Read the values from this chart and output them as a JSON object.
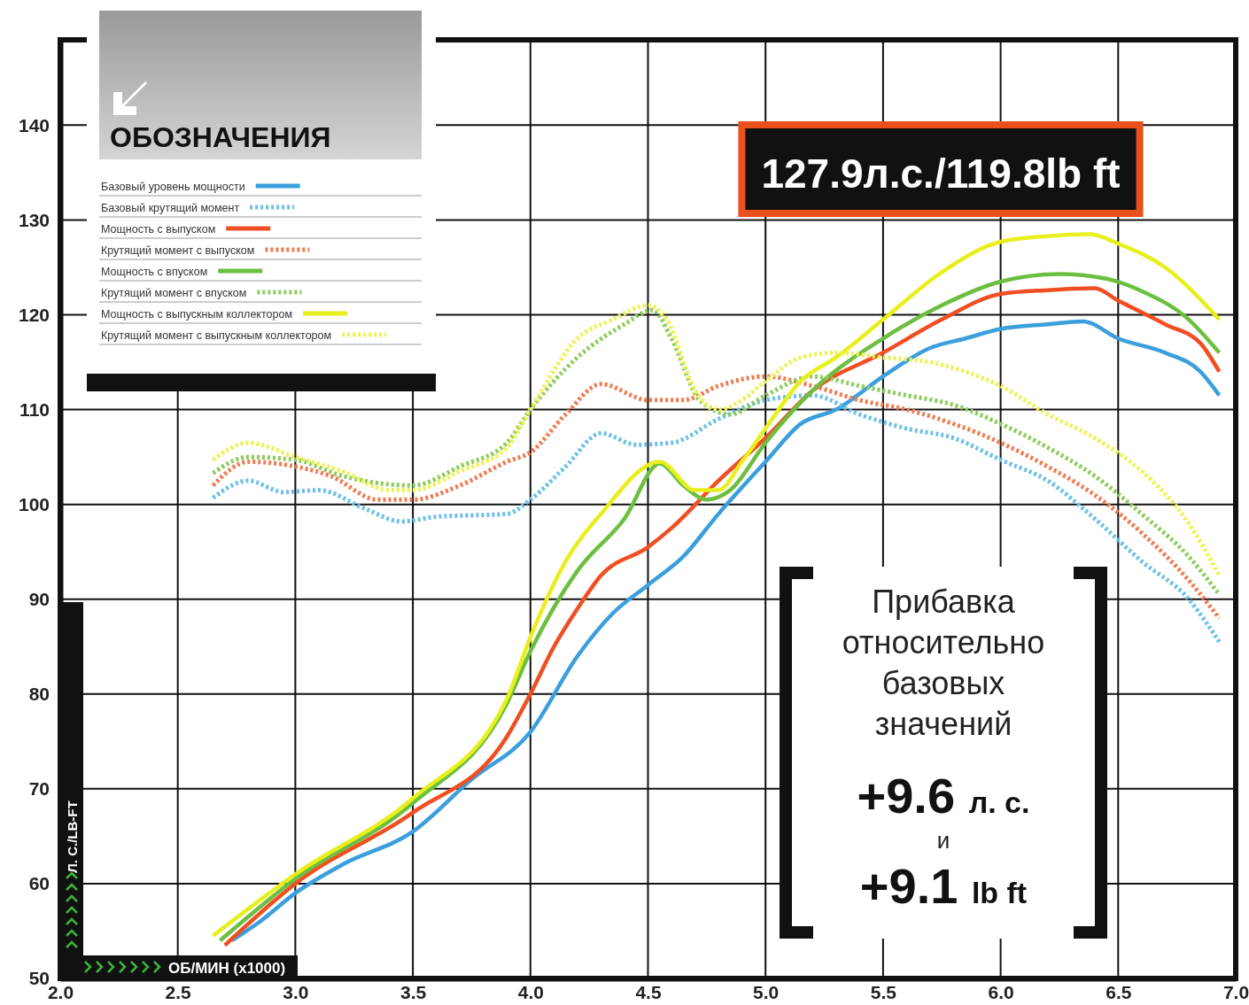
{
  "chart_data": {
    "type": "line",
    "xlabel": "ОБ/МИН (x1000)",
    "ylabel": "Л. С./LB-FT",
    "legend_title": "ОБОЗНАЧЕНИЯ",
    "legend": "top left",
    "grid": true,
    "xlim": [
      2,
      7
    ],
    "ylim": [
      50,
      149
    ],
    "xticks": [
      {
        "value": 2,
        "label": "2.0"
      },
      {
        "value": 2.5,
        "label": "2.5"
      },
      {
        "value": 3,
        "label": "3.0"
      },
      {
        "value": 3.5,
        "label": "3.5"
      },
      {
        "value": 4,
        "label": "4.0"
      },
      {
        "value": 4.5,
        "label": "4.5"
      },
      {
        "value": 5,
        "label": "5.0"
      },
      {
        "value": 5.5,
        "label": "5.5"
      },
      {
        "value": 6,
        "label": "6.0"
      },
      {
        "value": 6.5,
        "label": "6.5"
      },
      {
        "value": 7,
        "label": "7.0"
      }
    ],
    "yticks": [
      50,
      60,
      70,
      80,
      90,
      100,
      110,
      120,
      130,
      140
    ],
    "annotations": [
      "127.9л.с./119.8lb ft",
      "Прибавка относительно базовых значений",
      "+9.6 л. с.",
      "и",
      "+9.1 lb ft"
    ],
    "series": [
      {
        "name": "Базовый уровень мощности",
        "color": "#3a9fdc",
        "line_style": "solid",
        "x": [
          2.73,
          2.85,
          3.0,
          3.2,
          3.5,
          3.75,
          4.0,
          4.2,
          4.35,
          4.5,
          4.65,
          4.8,
          5.0,
          5.15,
          5.3,
          5.5,
          5.7,
          5.85,
          6.0,
          6.2,
          6.35,
          6.5,
          6.7,
          6.85,
          6.93
        ],
        "values": [
          54,
          56,
          59,
          62,
          65.5,
          71,
          76,
          84,
          88.5,
          91.5,
          94.5,
          99,
          104.5,
          108.5,
          110,
          113.5,
          116.5,
          117.5,
          118.5,
          119,
          119.3,
          117.5,
          116,
          114,
          111.5
        ]
      },
      {
        "name": "Базовый крутящий момент",
        "color": "#6cc0e8",
        "line_style": "dotted",
        "x": [
          2.65,
          2.8,
          2.95,
          3.1,
          3.3,
          3.45,
          3.6,
          3.9,
          4.0,
          4.15,
          4.3,
          4.45,
          4.6,
          4.8,
          5.0,
          5.2,
          5.4,
          5.6,
          5.8,
          6.0,
          6.2,
          6.4,
          6.6,
          6.8,
          6.93
        ],
        "values": [
          100.7,
          102.5,
          101.3,
          101.5,
          99.5,
          98.2,
          98.7,
          99,
          100.5,
          104,
          107.5,
          106.3,
          106.5,
          109,
          111,
          111.5,
          109.5,
          108,
          107,
          104.7,
          102.5,
          98.5,
          94,
          90,
          85.5
        ]
      },
      {
        "name": "Мощность с выпуском",
        "color": "#f04e23",
        "line_style": "solid",
        "x": [
          2.7,
          3.0,
          3.5,
          3.9,
          4.0,
          4.1,
          4.2,
          4.3,
          4.5,
          4.6,
          4.8,
          5.0,
          5.2,
          5.5,
          5.75,
          6.0,
          6.2,
          6.4,
          6.5,
          6.7,
          6.85,
          6.93
        ],
        "values": [
          53.5,
          60,
          67.5,
          75.5,
          80,
          85,
          89,
          92.5,
          95.5,
          97.5,
          102.5,
          107,
          112,
          116,
          119.5,
          122.2,
          122.6,
          122.8,
          121.5,
          119,
          117,
          114
        ]
      },
      {
        "name": "Крутящий момент с выпуском",
        "color": "#f07a50",
        "line_style": "dotted",
        "x": [
          2.65,
          2.8,
          3.0,
          3.15,
          3.35,
          3.5,
          3.7,
          3.9,
          4.0,
          4.15,
          4.3,
          4.5,
          4.65,
          4.8,
          5.0,
          5.2,
          5.4,
          5.6,
          5.8,
          6.0,
          6.2,
          6.4,
          6.6,
          6.8,
          6.93
        ],
        "values": [
          102,
          104.5,
          104,
          103,
          100.5,
          100.5,
          102,
          104.5,
          105.5,
          109.5,
          112.7,
          111,
          111,
          112.5,
          113.5,
          112.5,
          111,
          110,
          108.5,
          106.5,
          104,
          101,
          97,
          92,
          88
        ]
      },
      {
        "name": "Мощность с впуском",
        "color": "#6cbf3f",
        "line_style": "solid",
        "x": [
          2.68,
          3.0,
          3.5,
          3.9,
          4.0,
          4.2,
          4.4,
          4.55,
          4.65,
          4.75,
          4.85,
          5.0,
          5.2,
          5.5,
          5.75,
          6.0,
          6.25,
          6.45,
          6.6,
          6.8,
          6.93
        ],
        "values": [
          54,
          60.5,
          68.5,
          79,
          84.5,
          93,
          98.5,
          104.3,
          102,
          100.5,
          101.5,
          106.5,
          112,
          117.5,
          121,
          123.5,
          124.3,
          123.8,
          122.5,
          119.5,
          116
        ]
      },
      {
        "name": "Крутящий момент с впуском",
        "color": "#8ccc5a",
        "line_style": "dotted",
        "x": [
          2.65,
          2.8,
          3.0,
          3.2,
          3.5,
          3.7,
          3.9,
          4.0,
          4.2,
          4.4,
          4.52,
          4.6,
          4.72,
          4.85,
          5.0,
          5.2,
          5.4,
          5.6,
          5.8,
          6.0,
          6.2,
          6.4,
          6.6,
          6.8,
          6.93
        ],
        "values": [
          103.3,
          105,
          104.7,
          103,
          102,
          104,
          106.5,
          110,
          115.5,
          119,
          120.5,
          117.5,
          111,
          109.5,
          111.5,
          113.5,
          112.5,
          111.5,
          110.5,
          108.5,
          106,
          103,
          99,
          94.5,
          90.5
        ]
      },
      {
        "name": "Мощность с выпускным коллектором",
        "color": "#e8ef1c",
        "line_style": "solid",
        "x": [
          2.65,
          3.0,
          3.5,
          3.9,
          4.0,
          4.15,
          4.3,
          4.55,
          4.7,
          4.8,
          4.9,
          5.0,
          5.15,
          5.3,
          5.5,
          5.75,
          6.0,
          6.2,
          6.38,
          6.5,
          6.7,
          6.93
        ],
        "values": [
          54.5,
          61,
          69,
          79.5,
          86,
          94,
          99,
          104.5,
          101.5,
          101.5,
          104.5,
          108,
          113,
          115.5,
          119.5,
          124.5,
          127.7,
          128.3,
          128.5,
          127.5,
          125,
          119.5
        ]
      },
      {
        "name": "Крутящий момент с выпускным коллектором",
        "color": "#eef250",
        "line_style": "dotted",
        "x": [
          2.65,
          2.8,
          3.0,
          3.2,
          3.4,
          3.5,
          3.7,
          3.9,
          4.0,
          4.2,
          4.35,
          4.5,
          4.58,
          4.7,
          4.8,
          4.9,
          5.0,
          5.15,
          5.3,
          5.5,
          5.7,
          5.85,
          6.0,
          6.2,
          6.4,
          6.6,
          6.8,
          6.93
        ],
        "values": [
          104.7,
          106.5,
          105,
          103.5,
          101.5,
          101.5,
          103.5,
          106,
          110,
          117.5,
          119.5,
          121,
          119.5,
          112,
          110,
          111,
          113,
          115.5,
          116,
          115.5,
          115,
          114,
          112.5,
          109.5,
          107,
          103.5,
          98,
          92.5
        ]
      }
    ]
  }
}
